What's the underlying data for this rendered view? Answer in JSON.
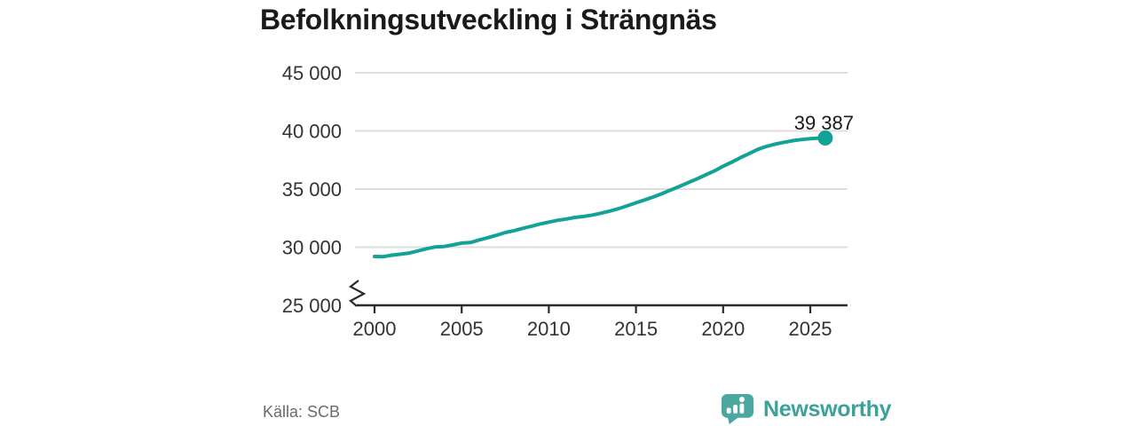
{
  "title": "Befolkningsutveckling i Strängnäs",
  "source": "Källa: SCB",
  "brand": {
    "name": "Newsworthy"
  },
  "colors": {
    "line": "#12a296",
    "marker": "#12a296",
    "grid": "#dedede",
    "axis": "#2b2b2b",
    "tick_label": "#333333",
    "title": "#1a1a1a",
    "source_text": "#6b6b6b",
    "brand_text": "#3aa29a",
    "brand_icon": "#4aa8a0",
    "background": "#ffffff"
  },
  "chart_data": {
    "type": "line",
    "title": "Befolkningsutveckling i Strängnäs",
    "xlabel": "",
    "ylabel": "",
    "grid": "horizontal",
    "legend": "none",
    "y_axis_break": true,
    "ylim": [
      25000,
      45000
    ],
    "xlim": [
      1998.9,
      2027.1
    ],
    "x_ticks": [
      2000,
      2005,
      2010,
      2015,
      2020,
      2025
    ],
    "x_tick_labels": [
      "2000",
      "2005",
      "2010",
      "2015",
      "2020",
      "2025"
    ],
    "y_ticks": [
      25000,
      30000,
      35000,
      40000,
      45000
    ],
    "y_tick_labels": [
      "25 000",
      "30 000",
      "35 000",
      "40 000",
      "45 000"
    ],
    "end_label": "39 387",
    "end_value": 39387,
    "series": [
      {
        "name": "Befolkning",
        "points": [
          [
            2000,
            29200
          ],
          [
            2000.5,
            29180
          ],
          [
            2001,
            29310
          ],
          [
            2001.5,
            29400
          ],
          [
            2002,
            29500
          ],
          [
            2002.5,
            29680
          ],
          [
            2003,
            29870
          ],
          [
            2003.5,
            30020
          ],
          [
            2004,
            30060
          ],
          [
            2004.5,
            30200
          ],
          [
            2005,
            30350
          ],
          [
            2005.5,
            30400
          ],
          [
            2006,
            30620
          ],
          [
            2006.5,
            30820
          ],
          [
            2007,
            31020
          ],
          [
            2007.5,
            31260
          ],
          [
            2008,
            31420
          ],
          [
            2008.5,
            31620
          ],
          [
            2009,
            31800
          ],
          [
            2009.5,
            32000
          ],
          [
            2010,
            32150
          ],
          [
            2010.5,
            32310
          ],
          [
            2011,
            32420
          ],
          [
            2011.5,
            32560
          ],
          [
            2012,
            32640
          ],
          [
            2012.5,
            32760
          ],
          [
            2013,
            32920
          ],
          [
            2013.5,
            33110
          ],
          [
            2014,
            33310
          ],
          [
            2014.5,
            33560
          ],
          [
            2015,
            33820
          ],
          [
            2015.5,
            34060
          ],
          [
            2016,
            34320
          ],
          [
            2016.5,
            34610
          ],
          [
            2017,
            34920
          ],
          [
            2017.5,
            35230
          ],
          [
            2018,
            35560
          ],
          [
            2018.5,
            35870
          ],
          [
            2019,
            36220
          ],
          [
            2019.5,
            36560
          ],
          [
            2020,
            36960
          ],
          [
            2020.5,
            37310
          ],
          [
            2021,
            37700
          ],
          [
            2021.5,
            38060
          ],
          [
            2022,
            38420
          ],
          [
            2022.5,
            38670
          ],
          [
            2023,
            38870
          ],
          [
            2023.5,
            39020
          ],
          [
            2024,
            39160
          ],
          [
            2024.5,
            39260
          ],
          [
            2025,
            39330
          ],
          [
            2025.4,
            39365
          ],
          [
            2025.86,
            39387
          ]
        ]
      }
    ]
  }
}
